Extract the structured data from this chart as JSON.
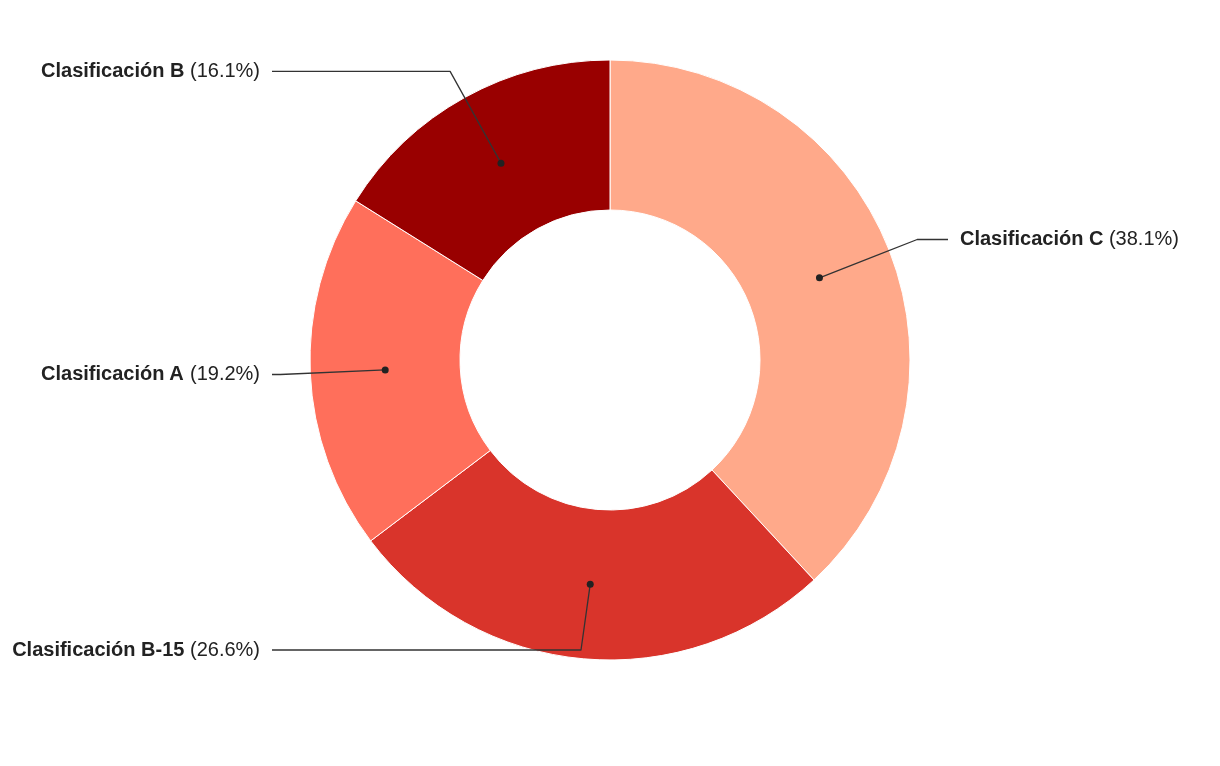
{
  "chart_data": {
    "type": "donut",
    "categories": [
      "Clasificación C",
      "Clasificación B-15",
      "Clasificación A",
      "Clasificación B"
    ],
    "values": [
      38.1,
      26.6,
      19.2,
      16.1
    ],
    "colors": [
      "#ffa98a",
      "#d9342b",
      "#ff6f5b",
      "#990000"
    ],
    "value_labels": [
      "(38.1%)",
      "(26.6%)",
      "(19.2%)",
      "(16.1%)"
    ],
    "legend": false
  }
}
